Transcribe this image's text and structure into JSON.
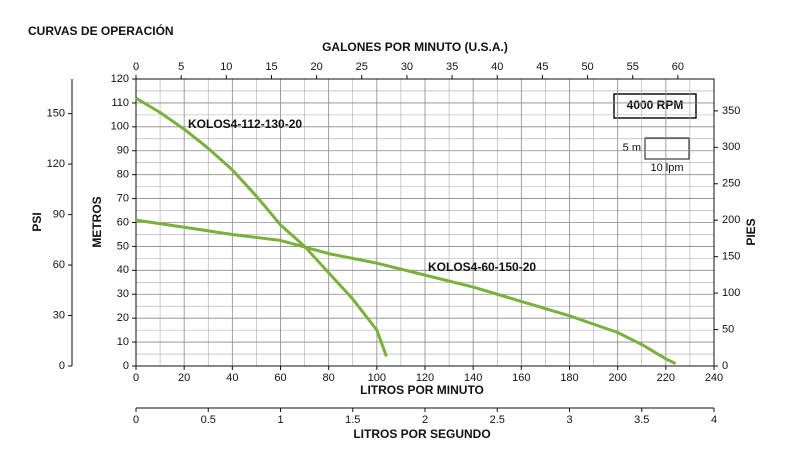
{
  "chart_data": {
    "type": "line",
    "title": "CURVAS DE OPERACIÓN",
    "xlabel": "LITROS POR MINUTO",
    "ylabel": "METROS",
    "xlim": [
      0,
      240
    ],
    "xticks": [
      0,
      20,
      40,
      60,
      80,
      100,
      120,
      140,
      160,
      180,
      200,
      220,
      240
    ],
    "x_minor_ticks": [
      10,
      30,
      50,
      70,
      90,
      110,
      130,
      150,
      170,
      190,
      210,
      230
    ],
    "ylim": [
      0,
      120
    ],
    "yticks": [
      0,
      10,
      20,
      30,
      40,
      50,
      60,
      70,
      80,
      90,
      100,
      110,
      120
    ],
    "y_minor_ticks": [
      5,
      15,
      25,
      35,
      45,
      55,
      65,
      75,
      85,
      95,
      105,
      115
    ],
    "grid": true,
    "top_axis": {
      "label": "GALONES POR MINUTO (U.S.A.)",
      "xlim": [
        0,
        64
      ],
      "xticks": [
        0,
        5,
        10,
        15,
        20,
        25,
        30,
        35,
        40,
        45,
        50,
        55,
        60
      ]
    },
    "second_bottom_axis": {
      "label": "LITROS POR SEGUNDO",
      "xlim": [
        0,
        4
      ],
      "xticks": [
        0,
        0.5,
        1,
        1.5,
        2,
        2.5,
        3,
        3.5,
        4
      ]
    },
    "left_axis": {
      "label": "PSI",
      "ylim": [
        0,
        170.6
      ],
      "yticks": [
        0,
        30,
        60,
        90,
        120,
        150
      ]
    },
    "right_axis": {
      "label": "PIES",
      "ylim": [
        0,
        393.7
      ],
      "yticks": [
        0,
        50,
        100,
        150,
        200,
        250,
        300,
        350
      ]
    },
    "annotations": [
      "4000 RPM",
      "5 m",
      "10 lpm"
    ],
    "series": [
      {
        "name": "KOLOS4-112-130-20",
        "color": "#7ab03c",
        "x": [
          0,
          10,
          20,
          30,
          40,
          50,
          60,
          70,
          80,
          90,
          100,
          104
        ],
        "values": [
          112,
          106,
          99,
          91,
          82,
          71,
          59,
          50,
          39,
          28,
          15,
          4
        ]
      },
      {
        "name": "KOLOS4-60-150-20",
        "color": "#7ab03c",
        "x": [
          0,
          20,
          40,
          60,
          80,
          100,
          120,
          140,
          160,
          180,
          200,
          210,
          220,
          224
        ],
        "values": [
          61,
          58,
          55,
          52.5,
          47,
          43,
          38,
          33,
          27,
          21,
          14,
          9,
          3,
          1
        ]
      }
    ]
  }
}
